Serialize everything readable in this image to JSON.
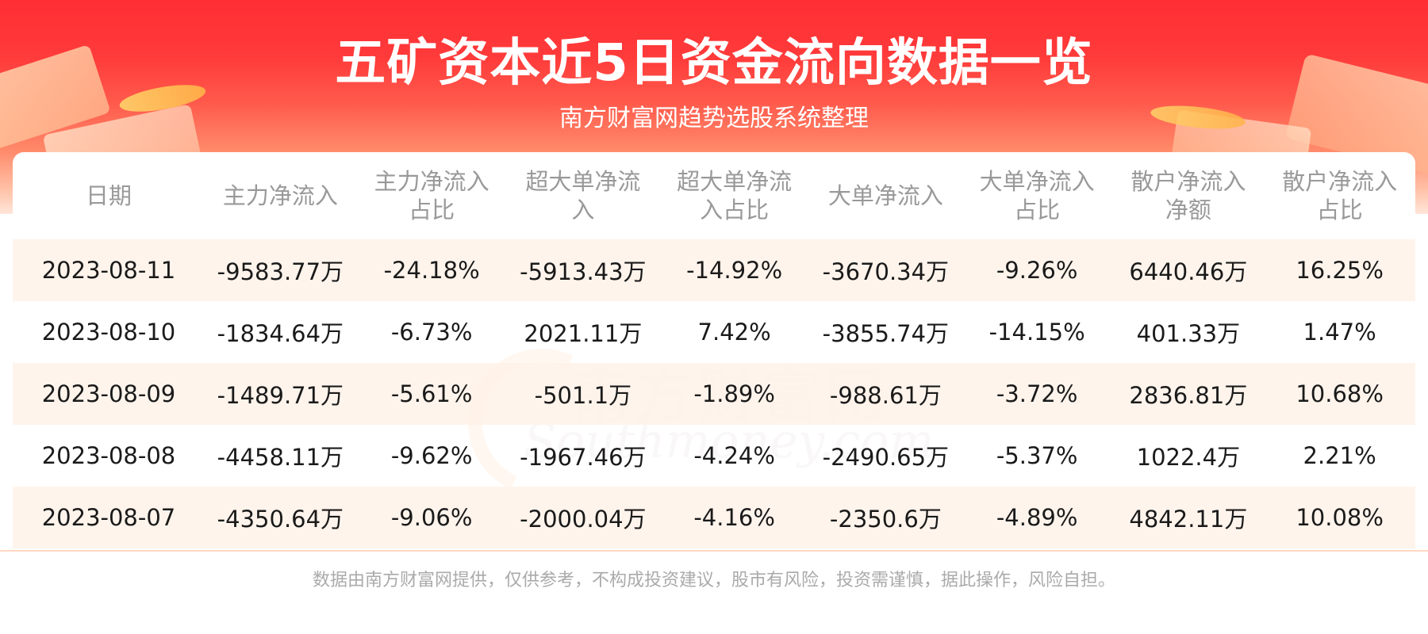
{
  "header": {
    "title": "五矿资本近5日资金流向数据一览",
    "subtitle": "南方财富网趋势选股系统整理"
  },
  "watermark": {
    "cn": "南方财富网",
    "en": "Southmoney.com"
  },
  "table": {
    "columns": [
      "日期",
      "主力净流入",
      "主力净流入占比",
      "超大单净流入",
      "超大单净流入占比",
      "大单净流入",
      "大单净流入占比",
      "散户净流入净额",
      "散户净流入占比"
    ],
    "rows": [
      [
        "2023-08-11",
        "-9583.77万",
        "-24.18%",
        "-5913.43万",
        "-14.92%",
        "-3670.34万",
        "-9.26%",
        "6440.46万",
        "16.25%"
      ],
      [
        "2023-08-10",
        "-1834.64万",
        "-6.73%",
        "2021.11万",
        "7.42%",
        "-3855.74万",
        "-14.15%",
        "401.33万",
        "1.47%"
      ],
      [
        "2023-08-09",
        "-1489.71万",
        "-5.61%",
        "-501.1万",
        "-1.89%",
        "-988.61万",
        "-3.72%",
        "2836.81万",
        "10.68%"
      ],
      [
        "2023-08-08",
        "-4458.11万",
        "-9.62%",
        "-1967.46万",
        "-4.24%",
        "-2490.65万",
        "-5.37%",
        "1022.4万",
        "2.21%"
      ],
      [
        "2023-08-07",
        "-4350.64万",
        "-9.06%",
        "-2000.04万",
        "-4.16%",
        "-2350.6万",
        "-4.89%",
        "4842.11万",
        "10.08%"
      ]
    ]
  },
  "footer": {
    "disclaimer": "数据由南方财富网提供，仅供参考，不构成投资建议，股市有风险，投资需谨慎，据此操作，风险自担。"
  },
  "colors": {
    "banner_red": "#ff2e34",
    "row_stripe": "#fff3ea",
    "header_text": "#999999",
    "body_text": "#1a1a1a",
    "footer_text": "#aaaaaa"
  }
}
